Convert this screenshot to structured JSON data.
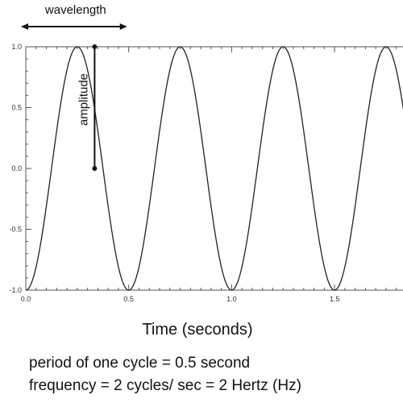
{
  "chart_data": {
    "type": "line",
    "xlabel": "Time (seconds)",
    "ylabel": "",
    "xlim": [
      0,
      1.95
    ],
    "ylim": [
      -1.0,
      1.0
    ],
    "x_ticks": [
      0.0,
      0.5,
      1.0,
      1.5
    ],
    "x_tick_labels": [
      "0.0",
      "0.5",
      "1.0",
      "1.5"
    ],
    "y_ticks": [
      -1.0,
      -0.5,
      0.0,
      0.5,
      1.0
    ],
    "y_tick_labels": [
      "-1.0",
      "-0.5",
      "0.0",
      "0.5",
      "1.0"
    ],
    "grid": false,
    "series": [
      {
        "function": "sine",
        "amplitude": 1.0,
        "frequency_hz": 2,
        "phase_cycles": 0.25,
        "color": "#222222"
      }
    ],
    "annotations": {
      "wavelength": {
        "label": "wavelength",
        "x_from": 0.0,
        "x_to": 0.5,
        "y": 1.0
      },
      "amplitude": {
        "label": "amplitude",
        "x": 0.35,
        "y_from": 0.0,
        "y_to": 1.0
      }
    }
  },
  "captions": {
    "line1": "period of one cycle = 0.5 second",
    "line2": "frequency = 2 cycles/ sec = 2 Hertz (Hz)"
  }
}
